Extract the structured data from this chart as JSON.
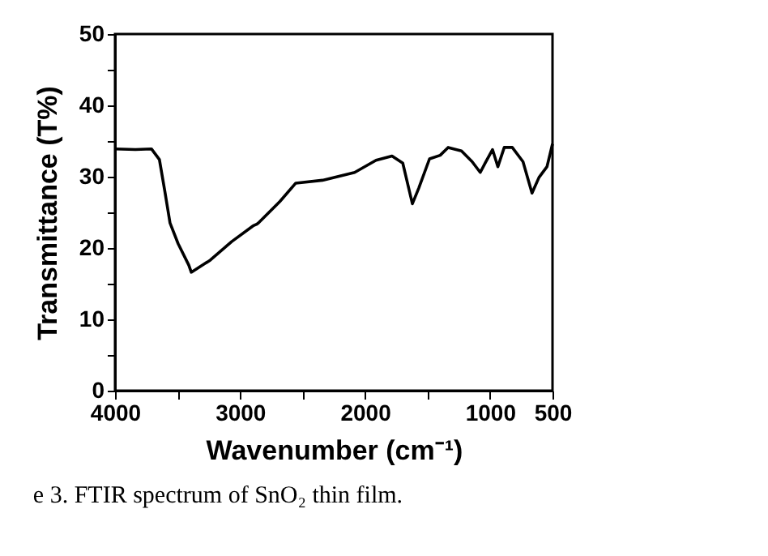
{
  "chart_data": {
    "type": "line",
    "xlabel": "Wavenumber (cm⁻¹)",
    "ylabel": "Transmittance (T%)",
    "annotations": [
      "e 3. FTIR spectrum of SnO₂ thin film."
    ],
    "x": [
      4000,
      3837,
      3709,
      3645,
      3602,
      3560,
      3495,
      3410,
      3390,
      3238,
      3067,
      2896,
      2870,
      2854,
      2682,
      2554,
      2340,
      2083,
      1912,
      1784,
      1698,
      1621,
      1570,
      1484,
      1399,
      1335,
      1228,
      1143,
      1078,
      1036,
      980,
      937,
      886,
      822,
      736,
      664,
      608,
      544,
      500
    ],
    "series": [
      {
        "color": "#000000",
        "values": [
          33.9,
          33.8,
          33.9,
          32.4,
          28.0,
          23.5,
          20.6,
          17.6,
          16.6,
          18.3,
          20.9,
          23.1,
          23.3,
          23.5,
          26.5,
          29.1,
          29.5,
          30.6,
          32.3,
          32.9,
          31.9,
          26.2,
          28.4,
          32.5,
          33.0,
          34.1,
          33.6,
          32.1,
          30.6,
          32.0,
          33.8,
          31.4,
          34.1,
          34.1,
          32.1,
          27.7,
          29.9,
          31.4,
          34.6
        ]
      }
    ],
    "xlim": [
      4000,
      500
    ],
    "xticks": [
      4000,
      {
        "value": 3500,
        "label": null
      },
      3000,
      {
        "value": 2500,
        "label": null
      },
      2000,
      {
        "value": 1500,
        "label": null
      },
      1000,
      500
    ],
    "ylim": [
      0,
      50
    ],
    "yticks": [
      0,
      {
        "value": 5,
        "label": null
      },
      10,
      {
        "value": 15,
        "label": null
      },
      20,
      {
        "value": 25,
        "label": null
      },
      30,
      {
        "value": 35,
        "label": null
      },
      40,
      {
        "value": 45,
        "label": null
      },
      50
    ],
    "grid": false,
    "marker": "none",
    "line_style": "solid"
  }
}
